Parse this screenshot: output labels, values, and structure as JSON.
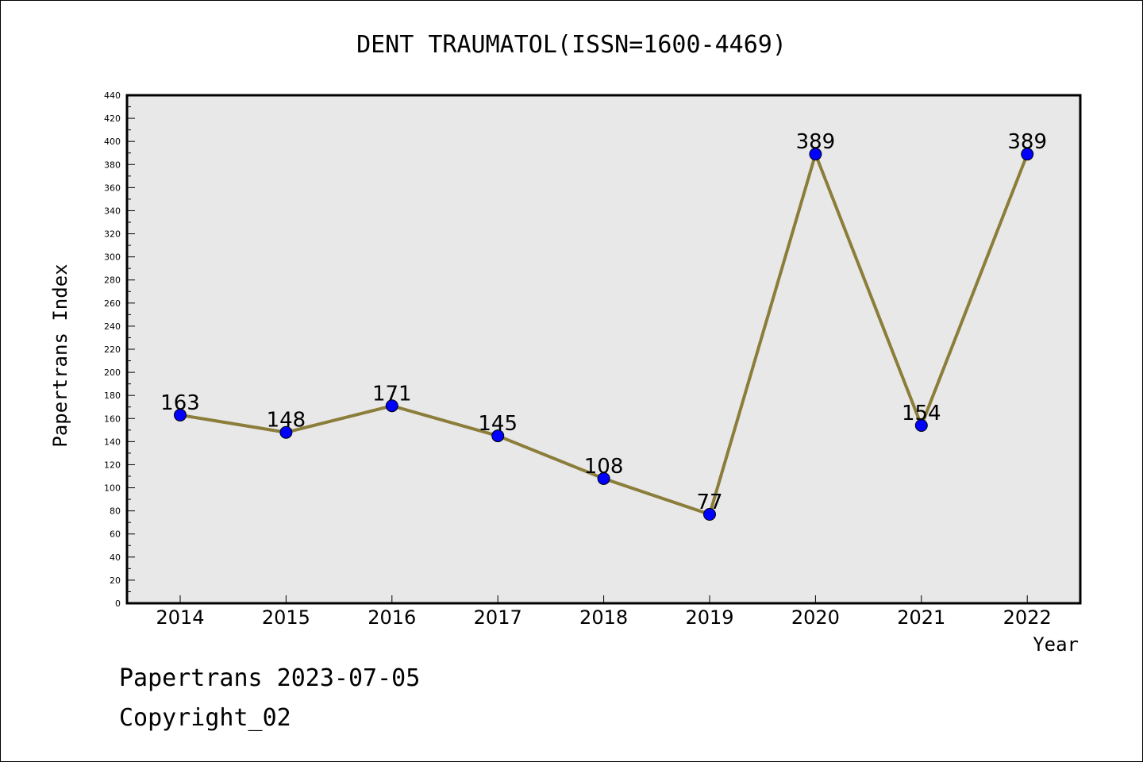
{
  "chart_data": {
    "type": "line",
    "title": "DENT TRAUMATOL(ISSN=1600-4469)",
    "xlabel": "Year",
    "ylabel": "Papertrans Index",
    "categories": [
      "2014",
      "2015",
      "2016",
      "2017",
      "2018",
      "2019",
      "2020",
      "2021",
      "2022"
    ],
    "series": [
      {
        "values": [
          163,
          148,
          171,
          145,
          108,
          77,
          389,
          154,
          389
        ]
      }
    ],
    "ylim": [
      0,
      440
    ],
    "ytick_step": 20,
    "grid": false,
    "colors": {
      "line": "#8b7d3a",
      "marker": "#0000ff",
      "plot_background": "#e8e8e8"
    }
  },
  "footer": {
    "line1": "Papertrans 2023-07-05",
    "line2": "Copyright_02"
  }
}
